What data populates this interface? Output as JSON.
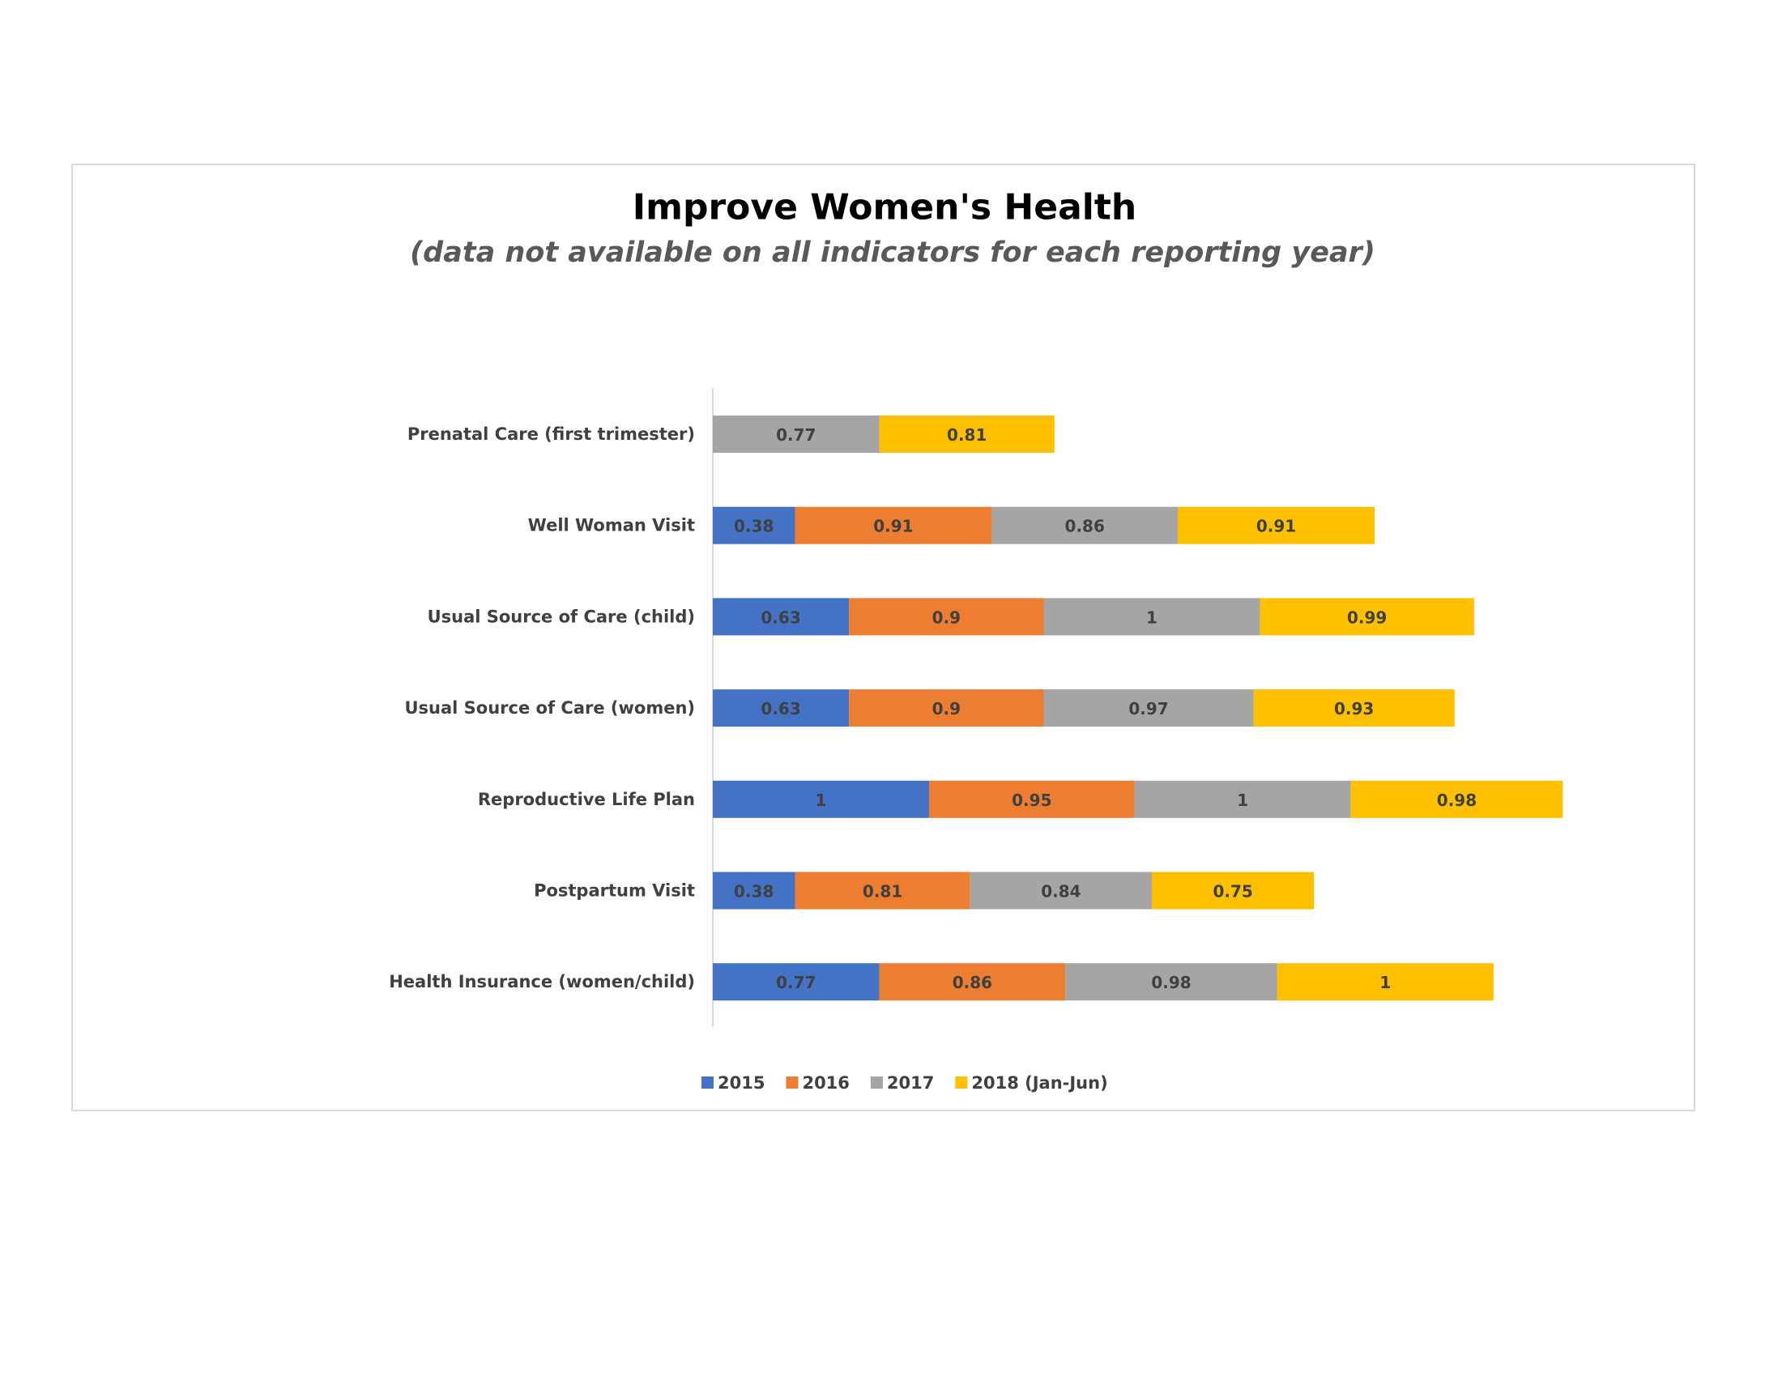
{
  "chart_data": {
    "type": "bar",
    "orientation": "horizontal",
    "stacked": true,
    "title": "Improve Women's Health",
    "subtitle": "(data not available on all indicators for each reporting year)",
    "categories": [
      "Prenatal Care (first trimester)",
      "Well Woman Visit",
      "Usual Source of Care (child)",
      "Usual Source of Care (women)",
      "Reproductive Life Plan",
      "Postpartum Visit",
      "Health Insurance (women/child)"
    ],
    "series": [
      {
        "name": "2015",
        "color": "#4472c4",
        "values": [
          null,
          0.38,
          0.63,
          0.63,
          1,
          0.38,
          0.77
        ]
      },
      {
        "name": "2016",
        "color": "#ed7d31",
        "values": [
          null,
          0.91,
          0.9,
          0.9,
          0.95,
          0.81,
          0.86
        ]
      },
      {
        "name": "2017",
        "color": "#a5a5a5",
        "values": [
          0.77,
          0.86,
          1,
          0.97,
          1,
          0.84,
          0.98
        ]
      },
      {
        "name": "2018 (Jan-Jun)",
        "color": "#ffc000",
        "values": [
          0.81,
          0.91,
          0.99,
          0.93,
          0.98,
          0.75,
          1
        ]
      }
    ],
    "xlim": [
      0,
      4
    ],
    "grid": false,
    "legend_position": "bottom",
    "data_labels": true
  }
}
